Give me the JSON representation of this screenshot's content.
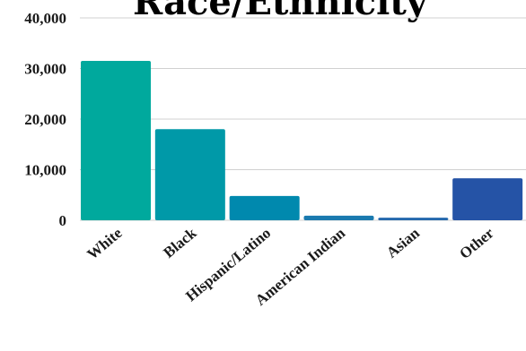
{
  "chart_data": {
    "type": "bar",
    "title": "Race/Ethnicity",
    "categories": [
      "White",
      "Black",
      "Hispanic/Latino",
      "American Indian",
      "Asian",
      "Other"
    ],
    "values": [
      31500,
      18000,
      4800,
      900,
      500,
      8300
    ],
    "ylim": [
      0,
      40000
    ],
    "yticks": [
      "0",
      "10,000",
      "20,000",
      "30,000",
      "40,000"
    ],
    "grid": true,
    "colors": [
      "#00A99D",
      "#0099A8",
      "#0089AE",
      "#1A7AAF",
      "#2468AD",
      "#2553A6"
    ]
  }
}
